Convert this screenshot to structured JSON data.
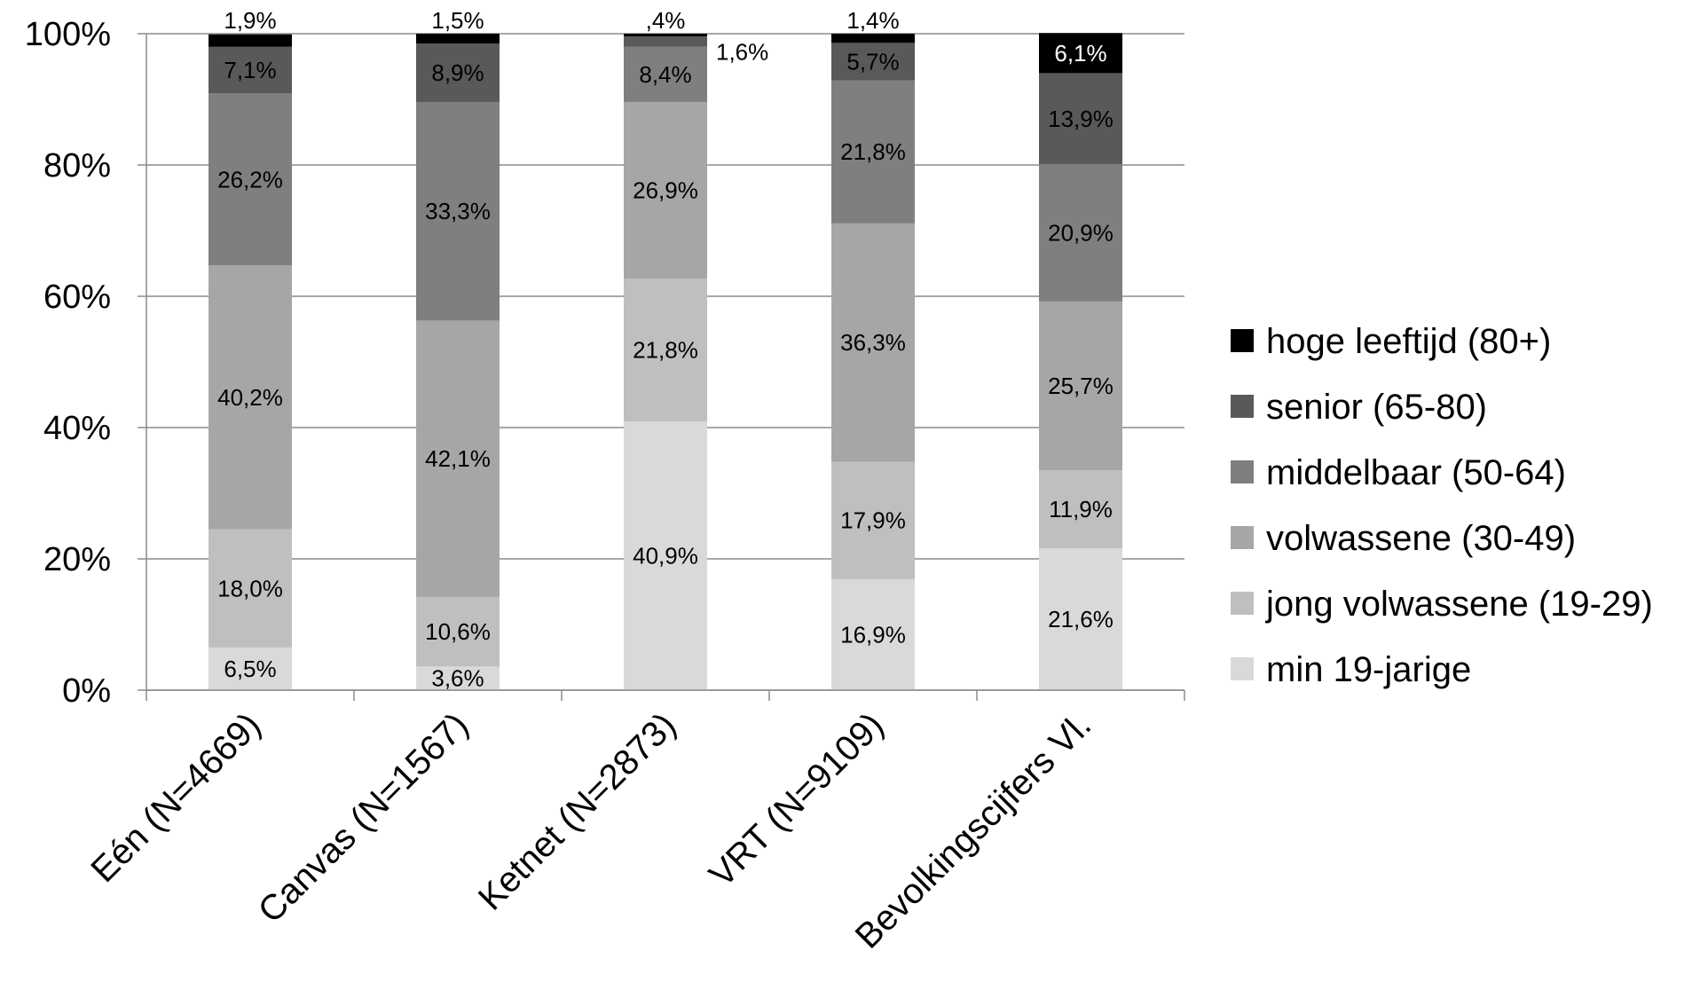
{
  "chart_data": {
    "type": "bar",
    "stacked": "percent",
    "categories": [
      "Eén (N=4669)",
      "Canvas (N=1567)",
      "Ketnet (N=2873)",
      "VRT (N=9109)",
      "Bevolkingscijfers Vl."
    ],
    "ylim": [
      0,
      100
    ],
    "yticks": [
      "0%",
      "20%",
      "40%",
      "60%",
      "80%",
      "100%"
    ],
    "grid": true,
    "legend_position": "right",
    "series": [
      {
        "name": "min 19-jarige",
        "color": "#d9d9d9",
        "values": [
          6.5,
          3.6,
          40.9,
          16.9,
          21.6
        ],
        "labels": [
          "6,5%",
          "3,6%",
          "40,9%",
          "16,9%",
          "21,6%"
        ]
      },
      {
        "name": "jong volwassene (19-29)",
        "color": "#bfbfbf",
        "values": [
          18.0,
          10.6,
          21.8,
          17.9,
          11.9
        ],
        "labels": [
          "18,0%",
          "10,6%",
          "21,8%",
          "17,9%",
          "11,9%"
        ]
      },
      {
        "name": "volwassene (30-49)",
        "color": "#a6a6a6",
        "values": [
          40.2,
          42.1,
          26.9,
          36.3,
          25.7
        ],
        "labels": [
          "40,2%",
          "42,1%",
          "26,9%",
          "36,3%",
          "25,7%"
        ]
      },
      {
        "name": "middelbaar (50-64)",
        "color": "#7f7f7f",
        "values": [
          26.2,
          33.3,
          8.4,
          21.8,
          20.9
        ],
        "labels": [
          "26,2%",
          "33,3%",
          "8,4%",
          "21,8%",
          "20,9%"
        ]
      },
      {
        "name": "senior (65-80)",
        "color": "#595959",
        "values": [
          7.1,
          8.9,
          1.6,
          5.7,
          13.9
        ],
        "labels": [
          "7,1%",
          "8,9%",
          "1,6%",
          "5,7%",
          "13,9%"
        ]
      },
      {
        "name": "hoge leeftijd (80+)",
        "color": "#000000",
        "values": [
          1.9,
          1.5,
          0.4,
          1.4,
          6.1
        ],
        "labels": [
          "1,9%",
          "1,5%",
          ",4%",
          "1,4%",
          "6,1%"
        ]
      }
    ]
  }
}
